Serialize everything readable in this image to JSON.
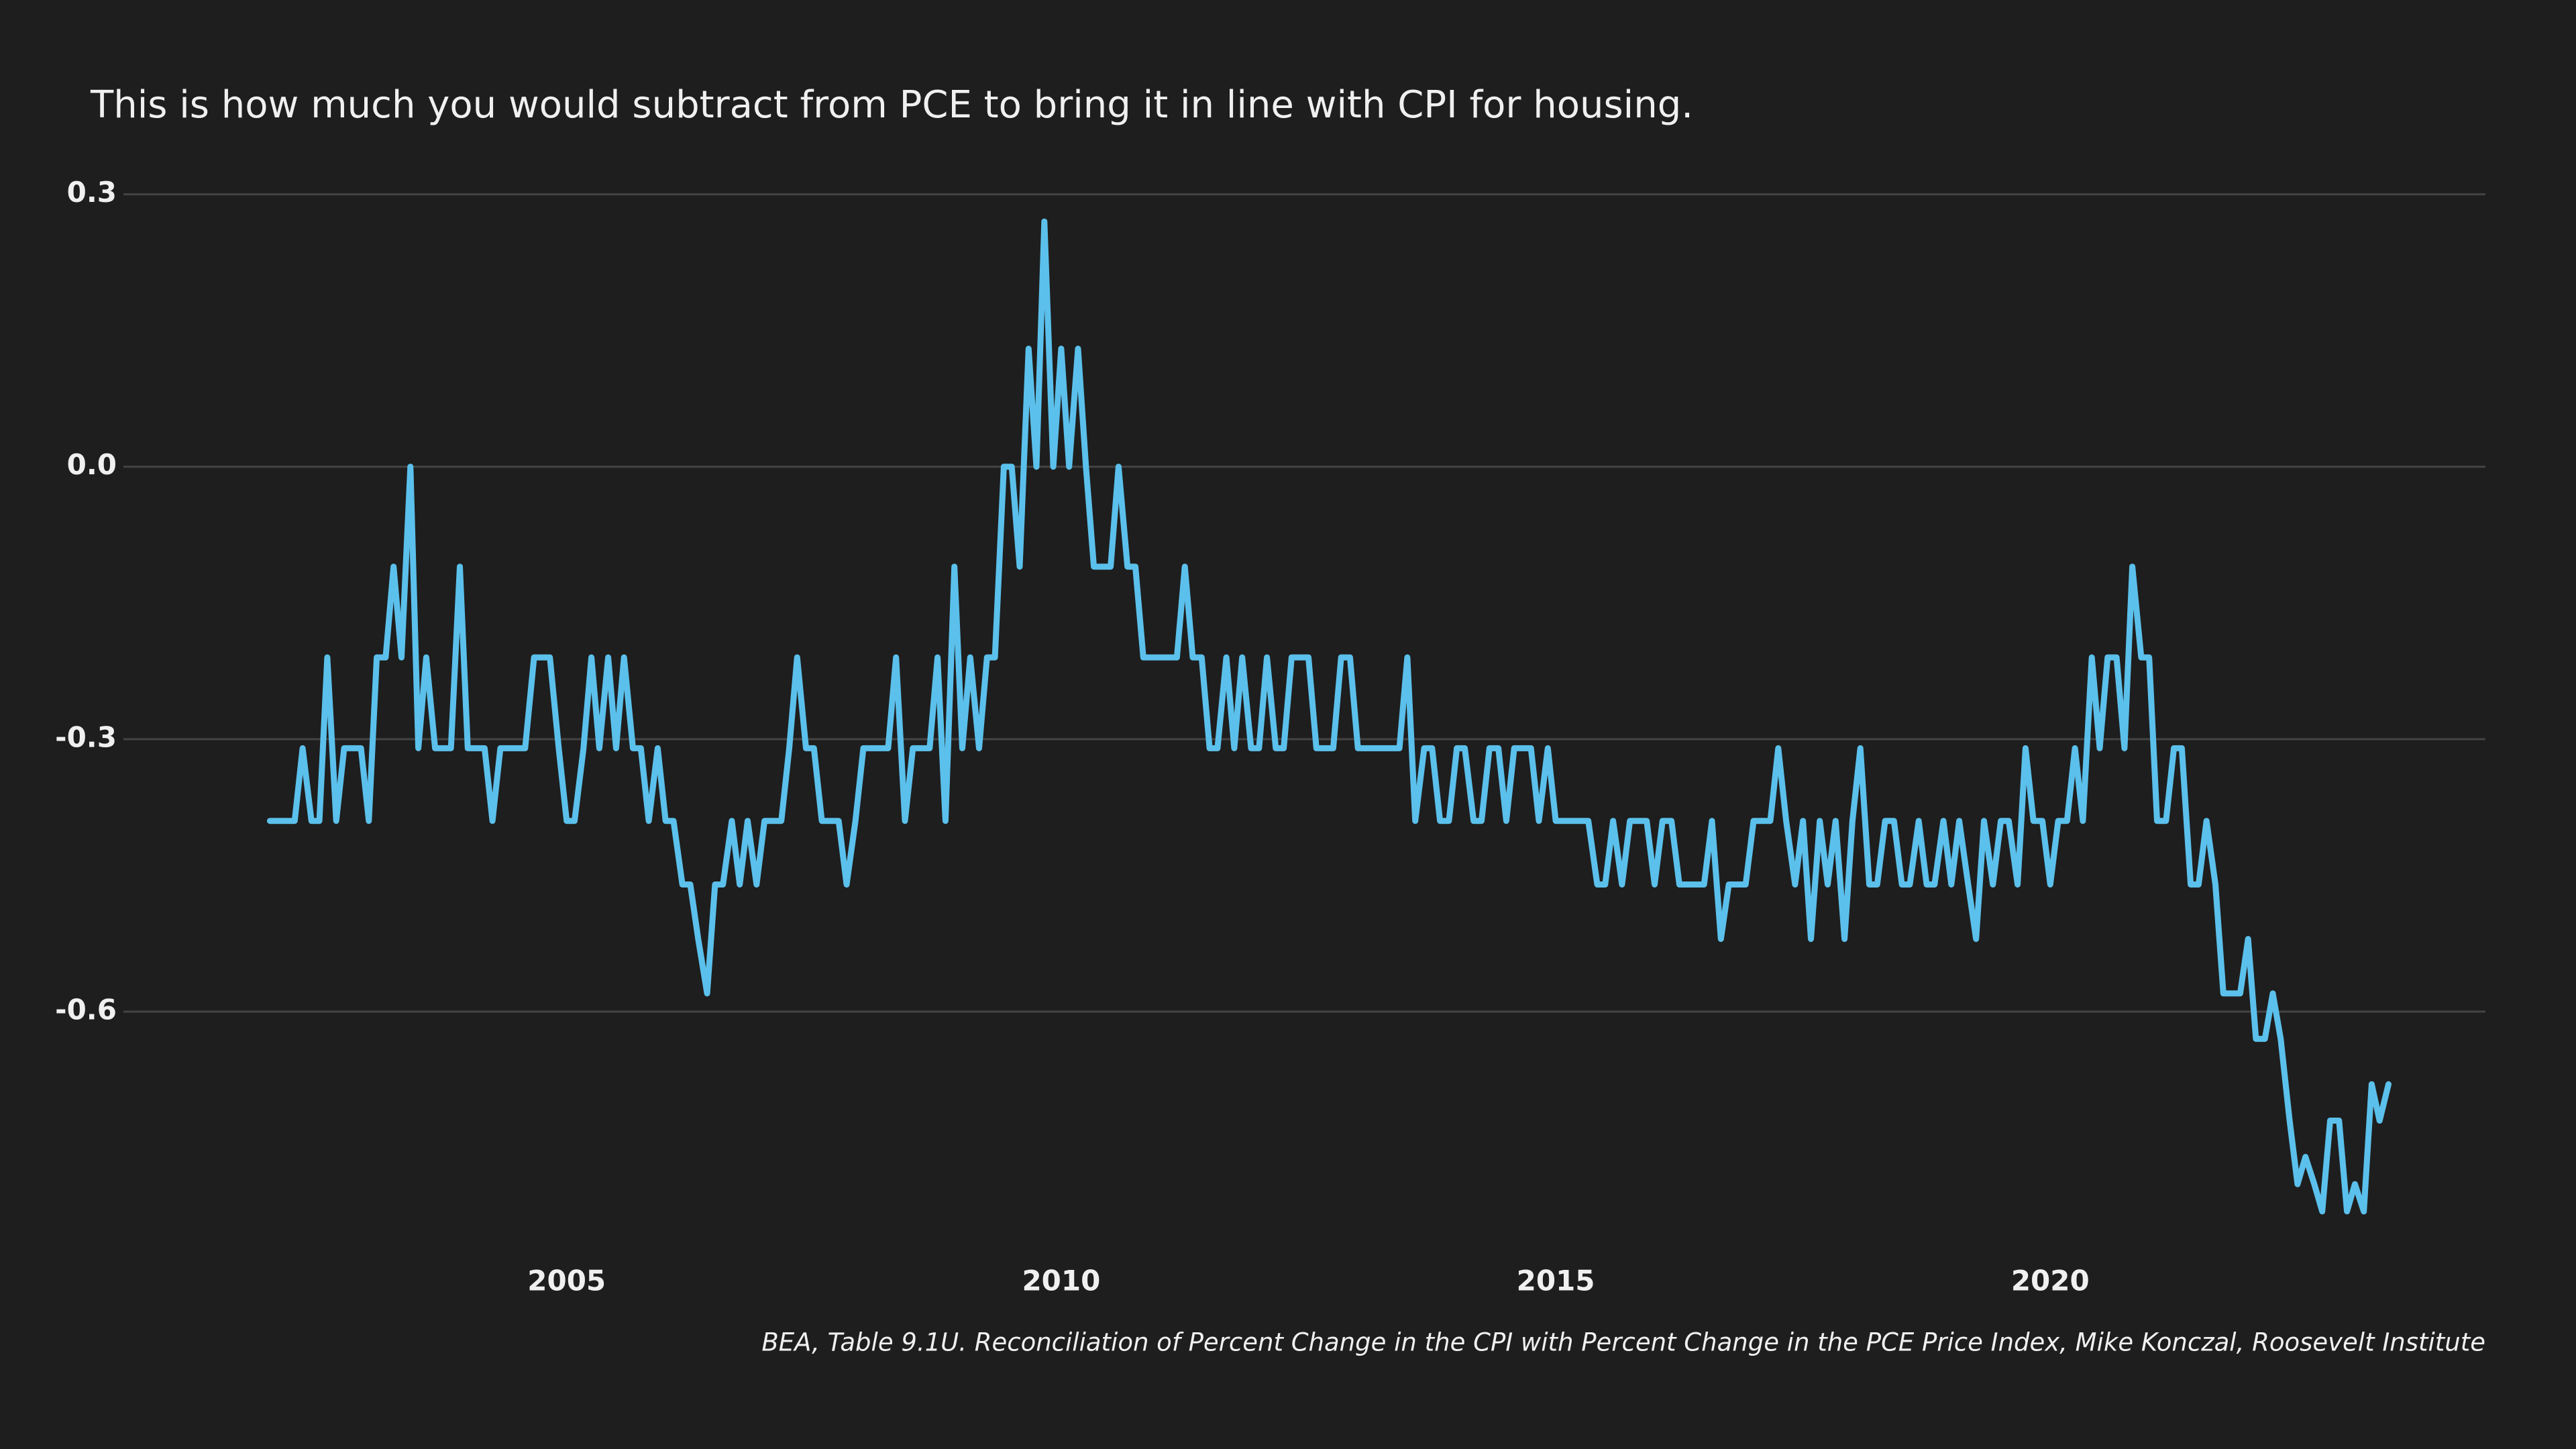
{
  "chart_data": {
    "type": "line",
    "title": "This is how much you would subtract from PCE to bring it in line with CPI for housing.",
    "source": "BEA, Table 9.1U. Reconciliation of Percent Change in the CPI with Percent Change in the PCE Price Index, Mike Konczal, Roosevelt Institute",
    "color": "#5bc0eb",
    "grid": true,
    "xlim": [
      2000.6,
      2024.4
    ],
    "xticks": [
      2005,
      2010,
      2015,
      2020
    ],
    "ylim": [
      -0.86,
      0.33
    ],
    "yticks": [
      0.3,
      {
        "value": 0,
        "label": "0.0"
      },
      -0.3,
      -0.6
    ],
    "x": [
      2002,
      2002.08,
      2002.17,
      2002.25,
      2002.33,
      2002.42,
      2002.5,
      2002.58,
      2002.67,
      2002.75,
      2002.83,
      2002.92,
      2003,
      2003.08,
      2003.17,
      2003.25,
      2003.33,
      2003.42,
      2003.5,
      2003.58,
      2003.67,
      2003.75,
      2003.83,
      2003.92,
      2004,
      2004.08,
      2004.17,
      2004.25,
      2004.33,
      2004.42,
      2004.5,
      2004.58,
      2004.67,
      2004.75,
      2004.83,
      2004.92,
      2005,
      2005.08,
      2005.17,
      2005.25,
      2005.33,
      2005.42,
      2005.5,
      2005.58,
      2005.67,
      2005.75,
      2005.83,
      2005.92,
      2006,
      2006.08,
      2006.17,
      2006.25,
      2006.33,
      2006.42,
      2006.5,
      2006.58,
      2006.67,
      2006.75,
      2006.83,
      2006.92,
      2007,
      2007.08,
      2007.17,
      2007.25,
      2007.33,
      2007.42,
      2007.5,
      2007.58,
      2007.67,
      2007.75,
      2007.83,
      2007.92,
      2008,
      2008.08,
      2008.17,
      2008.25,
      2008.33,
      2008.42,
      2008.5,
      2008.58,
      2008.67,
      2008.75,
      2008.83,
      2008.92,
      2009,
      2009.08,
      2009.17,
      2009.25,
      2009.33,
      2009.42,
      2009.5,
      2009.58,
      2009.67,
      2009.75,
      2009.83,
      2009.92,
      2010,
      2010.08,
      2010.17,
      2010.25,
      2010.33,
      2010.42,
      2010.5,
      2010.58,
      2010.67,
      2010.75,
      2010.83,
      2010.92,
      2011,
      2011.08,
      2011.17,
      2011.25,
      2011.33,
      2011.42,
      2011.5,
      2011.58,
      2011.67,
      2011.75,
      2011.83,
      2011.92,
      2012,
      2012.08,
      2012.17,
      2012.25,
      2012.33,
      2012.42,
      2012.5,
      2012.58,
      2012.67,
      2012.75,
      2012.83,
      2012.92,
      2013,
      2013.08,
      2013.17,
      2013.25,
      2013.33,
      2013.42,
      2013.5,
      2013.58,
      2013.67,
      2013.75,
      2013.83,
      2013.92,
      2014,
      2014.08,
      2014.17,
      2014.25,
      2014.33,
      2014.42,
      2014.5,
      2014.58,
      2014.67,
      2014.75,
      2014.83,
      2014.92,
      2015,
      2015.08,
      2015.17,
      2015.25,
      2015.33,
      2015.42,
      2015.5,
      2015.58,
      2015.67,
      2015.75,
      2015.83,
      2015.92,
      2016,
      2016.08,
      2016.17,
      2016.25,
      2016.33,
      2016.42,
      2016.5,
      2016.58,
      2016.67,
      2016.75,
      2016.83,
      2016.92,
      2017,
      2017.08,
      2017.17,
      2017.25,
      2017.33,
      2017.42,
      2017.5,
      2017.58,
      2017.67,
      2017.75,
      2017.83,
      2017.92,
      2018,
      2018.08,
      2018.17,
      2018.25,
      2018.33,
      2018.42,
      2018.5,
      2018.58,
      2018.67,
      2018.75,
      2018.83,
      2018.92,
      2019,
      2019.08,
      2019.17,
      2019.25,
      2019.33,
      2019.42,
      2019.5,
      2019.58,
      2019.67,
      2019.75,
      2019.83,
      2019.92,
      2020,
      2020.08,
      2020.17,
      2020.25,
      2020.33,
      2020.42,
      2020.5,
      2020.58,
      2020.67,
      2020.75,
      2020.83,
      2020.92,
      2021,
      2021.08,
      2021.17,
      2021.25,
      2021.33,
      2021.42,
      2021.5,
      2021.58,
      2021.67,
      2021.75,
      2021.83,
      2021.92,
      2022,
      2022.08,
      2022.17,
      2022.25,
      2022.33,
      2022.42,
      2022.5,
      2022.58,
      2022.67,
      2022.75,
      2022.83,
      2022.92,
      2023,
      2023.08,
      2023.17,
      2023.25,
      2023.33,
      2023.42
    ],
    "values": [
      -0.39,
      -0.39,
      -0.39,
      -0.39,
      -0.31,
      -0.39,
      -0.39,
      -0.21,
      -0.39,
      -0.31,
      -0.31,
      -0.31,
      -0.39,
      -0.21,
      -0.21,
      -0.11,
      -0.21,
      0.0,
      -0.31,
      -0.21,
      -0.31,
      -0.31,
      -0.31,
      -0.11,
      -0.31,
      -0.31,
      -0.31,
      -0.39,
      -0.31,
      -0.31,
      -0.31,
      -0.31,
      -0.21,
      -0.21,
      -0.21,
      -0.31,
      -0.39,
      -0.39,
      -0.31,
      -0.21,
      -0.31,
      -0.21,
      -0.31,
      -0.21,
      -0.31,
      -0.31,
      -0.39,
      -0.31,
      -0.39,
      -0.39,
      -0.46,
      -0.46,
      -0.52,
      -0.58,
      -0.46,
      -0.46,
      -0.39,
      -0.46,
      -0.39,
      -0.46,
      -0.39,
      -0.39,
      -0.39,
      -0.31,
      -0.21,
      -0.31,
      -0.31,
      -0.39,
      -0.39,
      -0.39,
      -0.46,
      -0.39,
      -0.31,
      -0.31,
      -0.31,
      -0.31,
      -0.21,
      -0.39,
      -0.31,
      -0.31,
      -0.31,
      -0.21,
      -0.39,
      -0.11,
      -0.31,
      -0.21,
      -0.31,
      -0.21,
      -0.21,
      0.0,
      0.0,
      -0.11,
      0.13,
      0.0,
      0.27,
      0.0,
      0.13,
      0.0,
      0.13,
      0.0,
      -0.11,
      -0.11,
      -0.11,
      0.0,
      -0.11,
      -0.11,
      -0.21,
      -0.21,
      -0.21,
      -0.21,
      -0.21,
      -0.11,
      -0.21,
      -0.21,
      -0.31,
      -0.31,
      -0.21,
      -0.31,
      -0.21,
      -0.31,
      -0.31,
      -0.21,
      -0.31,
      -0.31,
      -0.21,
      -0.21,
      -0.21,
      -0.31,
      -0.31,
      -0.31,
      -0.21,
      -0.21,
      -0.31,
      -0.31,
      -0.31,
      -0.31,
      -0.31,
      -0.31,
      -0.21,
      -0.39,
      -0.31,
      -0.31,
      -0.39,
      -0.39,
      -0.31,
      -0.31,
      -0.39,
      -0.39,
      -0.31,
      -0.31,
      -0.39,
      -0.31,
      -0.31,
      -0.31,
      -0.39,
      -0.31,
      -0.39,
      -0.39,
      -0.39,
      -0.39,
      -0.39,
      -0.46,
      -0.46,
      -0.39,
      -0.46,
      -0.39,
      -0.39,
      -0.39,
      -0.46,
      -0.39,
      -0.39,
      -0.46,
      -0.46,
      -0.46,
      -0.46,
      -0.39,
      -0.52,
      -0.46,
      -0.46,
      -0.46,
      -0.39,
      -0.39,
      -0.39,
      -0.31,
      -0.39,
      -0.46,
      -0.39,
      -0.52,
      -0.39,
      -0.46,
      -0.39,
      -0.52,
      -0.39,
      -0.31,
      -0.46,
      -0.46,
      -0.39,
      -0.39,
      -0.46,
      -0.46,
      -0.39,
      -0.46,
      -0.46,
      -0.39,
      -0.46,
      -0.39,
      -0.46,
      -0.52,
      -0.39,
      -0.46,
      -0.39,
      -0.39,
      -0.46,
      -0.31,
      -0.39,
      -0.39,
      -0.46,
      -0.39,
      -0.39,
      -0.31,
      -0.39,
      -0.21,
      -0.31,
      -0.21,
      -0.21,
      -0.31,
      -0.11,
      -0.21,
      -0.21,
      -0.39,
      -0.39,
      -0.31,
      -0.31,
      -0.46,
      -0.46,
      -0.39,
      -0.46,
      -0.58,
      -0.58,
      -0.58,
      -0.52,
      -0.63,
      -0.63,
      -0.58,
      -0.63,
      -0.72,
      -0.79,
      -0.76,
      -0.79,
      -0.82,
      -0.72,
      -0.72,
      -0.82,
      -0.79,
      -0.82,
      -0.68,
      -0.72,
      -0.68
    ]
  }
}
